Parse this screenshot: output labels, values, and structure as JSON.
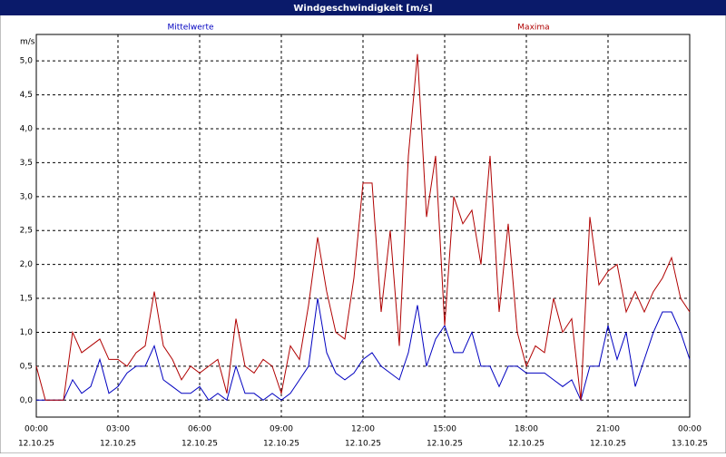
{
  "chart_data": {
    "type": "line",
    "title": "Windgeschwindigkeit [m/s]",
    "ylabel": "m/s",
    "x": [
      0,
      20,
      40,
      60,
      80,
      100,
      120,
      140,
      160,
      180,
      200,
      220,
      240,
      260,
      280,
      300,
      320,
      340,
      360,
      380,
      400,
      420,
      440,
      460,
      480,
      500,
      520,
      540,
      560,
      580,
      600,
      620,
      640,
      660,
      680,
      700,
      720,
      740,
      760,
      780,
      800,
      820,
      840,
      860,
      880,
      900,
      920,
      940,
      960,
      980,
      1000,
      1020,
      1040,
      1060,
      1080,
      1100,
      1120,
      1140,
      1160,
      1180,
      1200,
      1220,
      1240,
      1260,
      1280,
      1300,
      1320,
      1340,
      1360,
      1380,
      1400,
      1420,
      1440
    ],
    "series": [
      {
        "name": "Mittelwerte",
        "color": "#0000c0",
        "values": [
          0,
          0,
          0,
          0,
          0.3,
          0.1,
          0.2,
          0.6,
          0.1,
          0.2,
          0.4,
          0.5,
          0.5,
          0.8,
          0.3,
          0.2,
          0.1,
          0.1,
          0.2,
          0,
          0.1,
          0,
          0.5,
          0.1,
          0.1,
          0,
          0.1,
          0,
          0.1,
          0.3,
          0.5,
          1.5,
          0.7,
          0.4,
          0.3,
          0.4,
          0.6,
          0.7,
          0.5,
          0.4,
          0.3,
          0.7,
          1.4,
          0.5,
          0.9,
          1.1,
          0.7,
          0.7,
          1.0,
          0.5,
          0.5,
          0.2,
          0.5,
          0.5,
          0.4,
          0.4,
          0.4,
          0.3,
          0.2,
          0.3,
          0,
          0.5,
          0.5,
          1.1,
          0.6,
          1.0,
          0.2,
          0.6,
          1.0,
          1.3,
          1.3,
          1.0,
          0.6
        ]
      },
      {
        "name": "Maxima",
        "color": "#b00000",
        "values": [
          0.5,
          0,
          0,
          0,
          1.0,
          0.7,
          0.8,
          0.9,
          0.6,
          0.6,
          0.5,
          0.7,
          0.8,
          1.6,
          0.8,
          0.6,
          0.3,
          0.5,
          0.4,
          0.5,
          0.6,
          0.1,
          1.2,
          0.5,
          0.4,
          0.6,
          0.5,
          0.1,
          0.8,
          0.6,
          1.4,
          2.4,
          1.6,
          1.0,
          0.9,
          1.8,
          3.2,
          3.2,
          1.3,
          2.5,
          0.8,
          3.6,
          5.1,
          2.7,
          3.6,
          1.1,
          3.0,
          2.6,
          2.8,
          2.0,
          3.6,
          1.3,
          2.6,
          1.0,
          0.5,
          0.8,
          0.7,
          1.5,
          1.0,
          1.2,
          0,
          2.7,
          1.7,
          1.9,
          2.0,
          1.3,
          1.6,
          1.3,
          1.6,
          1.8,
          2.1,
          1.5,
          1.3
        ]
      }
    ],
    "xlim": [
      0,
      1440
    ],
    "xticks": [
      {
        "value": 0,
        "label": "00:00"
      },
      {
        "value": 180,
        "label": "03:00"
      },
      {
        "value": 360,
        "label": "06:00"
      },
      {
        "value": 540,
        "label": "09:00"
      },
      {
        "value": 720,
        "label": "12:00"
      },
      {
        "value": 900,
        "label": "15:00"
      },
      {
        "value": 1080,
        "label": "18:00"
      },
      {
        "value": 1260,
        "label": "21:00"
      },
      {
        "value": 1440,
        "label": "00:00"
      }
    ],
    "xtick_dates": [
      "12.10.25",
      "12.10.25",
      "12.10.25",
      "12.10.25",
      "12.10.25",
      "12.10.25",
      "12.10.25",
      "12.10.25",
      "13.10.25"
    ],
    "ylim": [
      -0.25,
      5.39
    ],
    "yticks": [
      {
        "value": 0,
        "label": "0,0"
      },
      {
        "value": 0.5,
        "label": "0,5"
      },
      {
        "value": 1,
        "label": "1,0"
      },
      {
        "value": 1.5,
        "label": "1,5"
      },
      {
        "value": 2,
        "label": "2,0"
      },
      {
        "value": 2.5,
        "label": "2,5"
      },
      {
        "value": 3,
        "label": "3,0"
      },
      {
        "value": 3.5,
        "label": "3,5"
      },
      {
        "value": 4,
        "label": "4,0"
      },
      {
        "value": 4.5,
        "label": "4,5"
      },
      {
        "value": 5,
        "label": "5,0"
      }
    ],
    "grid": true
  }
}
